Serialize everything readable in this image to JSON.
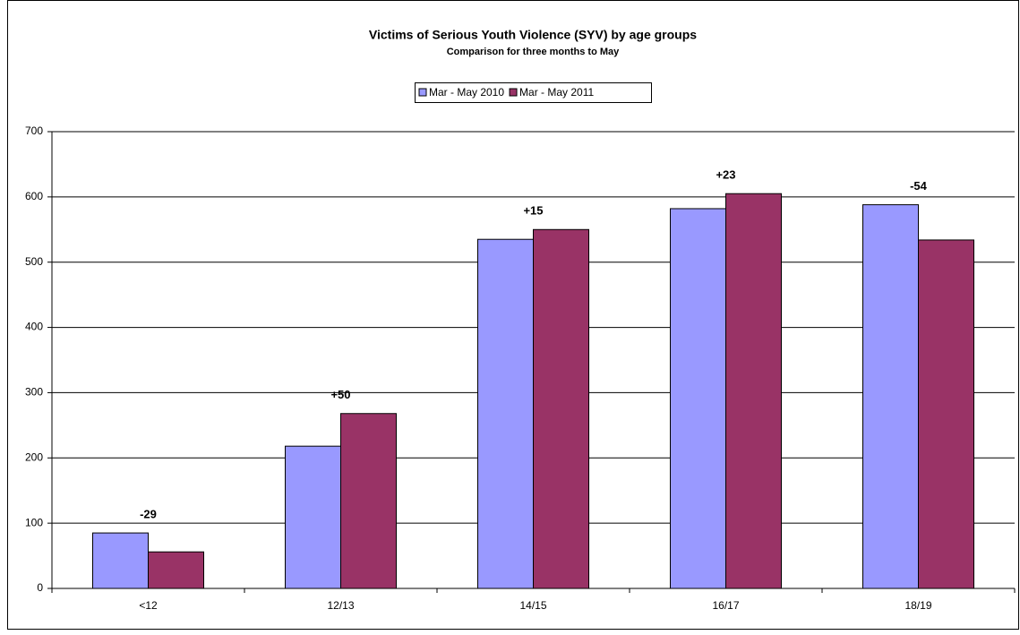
{
  "chart_data": {
    "type": "bar",
    "title": "Victims of Serious Youth Violence (SYV) by age groups",
    "subtitle": "Comparison for three months to May",
    "categories": [
      "<12",
      "12/13",
      "14/15",
      "16/17",
      "18/19"
    ],
    "series": [
      {
        "name": "Mar - May 2010",
        "color": "#9999ff",
        "values": [
          85,
          218,
          535,
          582,
          588
        ]
      },
      {
        "name": "Mar - May 2011",
        "color": "#993366",
        "values": [
          56,
          268,
          550,
          605,
          534
        ]
      }
    ],
    "annotations": [
      "-29",
      "+50",
      "+15",
      "+23",
      "-54"
    ],
    "ylim": [
      0,
      700
    ],
    "yticks": [
      0,
      100,
      200,
      300,
      400,
      500,
      600,
      700
    ],
    "grid": true
  }
}
